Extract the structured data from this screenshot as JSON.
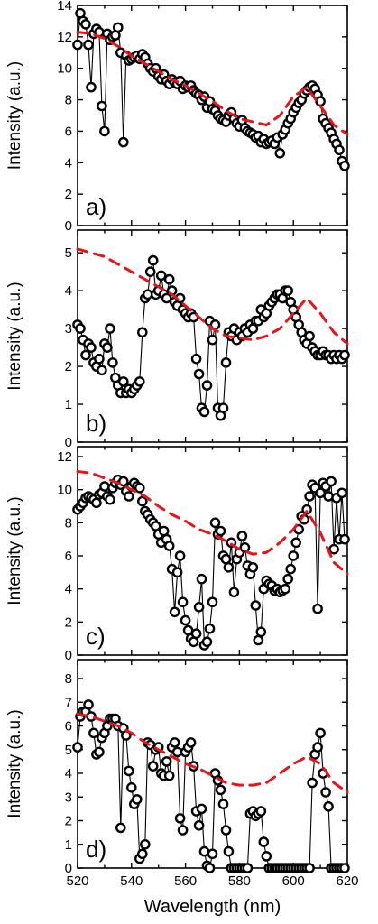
{
  "chart_data": [
    {
      "type": "scatter",
      "panel_label": "a)",
      "ylabel": "Intensity (a.u.)",
      "xlabel": "",
      "xlim": [
        520,
        620
      ],
      "ylim": [
        0,
        14
      ],
      "yticks": [
        "0",
        "2",
        "4",
        "6",
        "8",
        "10",
        "12",
        "14"
      ],
      "xticks": [],
      "series": [
        {
          "style": "markers",
          "x": [
            520,
            521,
            522,
            523,
            524,
            525,
            526,
            527,
            528,
            529,
            530,
            531,
            532,
            533,
            534,
            535,
            536,
            537,
            538,
            539,
            540,
            541,
            542,
            543,
            544,
            545,
            546,
            547,
            548,
            549,
            550,
            551,
            552,
            553,
            554,
            555,
            556,
            557,
            558,
            559,
            560,
            561,
            562,
            563,
            564,
            565,
            566,
            567,
            568,
            569,
            570,
            571,
            572,
            573,
            574,
            575,
            576,
            577,
            578,
            579,
            580,
            581,
            582,
            583,
            584,
            585,
            586,
            587,
            588,
            589,
            590,
            591,
            592,
            593,
            594,
            595,
            596,
            597,
            598,
            599,
            600,
            601,
            602,
            603,
            604,
            605,
            606,
            607,
            608,
            609,
            610,
            611,
            612,
            613,
            614,
            615,
            616,
            617,
            618,
            619
          ],
          "y": [
            11.5,
            13.5,
            13.0,
            12.8,
            11.5,
            8.8,
            12.2,
            12.5,
            12.3,
            7.6,
            6.0,
            12.2,
            11.8,
            12.0,
            12.1,
            12.6,
            11.0,
            5.3,
            10.8,
            10.5,
            10.6,
            10.7,
            10.8,
            10.6,
            10.9,
            10.7,
            10.3,
            10.0,
            9.8,
            10.0,
            9.5,
            9.3,
            9.6,
            9.2,
            9.0,
            9.3,
            9.1,
            9.0,
            9.2,
            8.7,
            8.9,
            8.8,
            8.9,
            8.6,
            8.4,
            8.3,
            8.0,
            8.2,
            7.5,
            7.9,
            7.4,
            7.3,
            7.0,
            6.8,
            6.7,
            6.6,
            7.0,
            7.2,
            6.8,
            6.5,
            6.3,
            6.7,
            6.2,
            6.0,
            5.9,
            5.8,
            5.6,
            5.7,
            5.3,
            5.5,
            5.2,
            5.3,
            5.4,
            5.2,
            5.6,
            4.6,
            5.8,
            6.1,
            6.5,
            6.8,
            7.2,
            7.5,
            7.8,
            8.0,
            8.4,
            8.6,
            8.8,
            8.9,
            8.7,
            8.3,
            7.9,
            6.8,
            6.5,
            6.2,
            5.9,
            5.5,
            5.2,
            4.8,
            4.1,
            3.8
          ]
        },
        {
          "style": "dashed-fit",
          "x": [
            520,
            525,
            530,
            535,
            540,
            545,
            550,
            555,
            560,
            565,
            570,
            575,
            580,
            585,
            590,
            595,
            600,
            605,
            610,
            615,
            620
          ],
          "y": [
            12.3,
            12.2,
            11.9,
            11.4,
            10.8,
            10.3,
            9.8,
            9.3,
            8.9,
            8.4,
            7.9,
            7.3,
            6.8,
            6.6,
            6.4,
            7.0,
            8.2,
            8.8,
            7.6,
            6.4,
            5.8
          ]
        }
      ]
    },
    {
      "type": "scatter",
      "panel_label": "b)",
      "ylabel": "Intensity (a.u.)",
      "xlabel": "",
      "xlim": [
        520,
        620
      ],
      "ylim": [
        0,
        5.6
      ],
      "yticks": [
        "0",
        "1",
        "2",
        "3",
        "4",
        "5"
      ],
      "xticks": [],
      "series": [
        {
          "style": "markers",
          "x": [
            520,
            521,
            522,
            523,
            524,
            525,
            526,
            527,
            528,
            529,
            530,
            531,
            532,
            533,
            534,
            535,
            536,
            537,
            538,
            539,
            540,
            541,
            542,
            543,
            544,
            545,
            546,
            547,
            548,
            549,
            550,
            551,
            552,
            553,
            554,
            555,
            556,
            557,
            558,
            559,
            560,
            561,
            562,
            563,
            564,
            565,
            566,
            567,
            568,
            569,
            570,
            571,
            572,
            573,
            574,
            575,
            576,
            577,
            578,
            579,
            580,
            581,
            582,
            583,
            584,
            585,
            586,
            587,
            588,
            589,
            590,
            591,
            592,
            593,
            594,
            595,
            596,
            597,
            598,
            599,
            600,
            601,
            602,
            603,
            604,
            605,
            606,
            607,
            608,
            609,
            610,
            611,
            612,
            613,
            614,
            615,
            616,
            617,
            618,
            619
          ],
          "y": [
            3.1,
            3.0,
            2.7,
            2.3,
            2.6,
            2.5,
            2.1,
            2.0,
            2.2,
            1.9,
            2.6,
            2.5,
            3.0,
            2.1,
            1.7,
            1.5,
            1.3,
            1.6,
            1.3,
            1.4,
            1.3,
            1.4,
            1.5,
            1.6,
            2.9,
            3.8,
            3.9,
            4.5,
            4.8,
            3.9,
            4.0,
            4.4,
            3.9,
            3.8,
            4.3,
            4.0,
            3.7,
            3.6,
            3.8,
            3.5,
            3.4,
            3.3,
            3.4,
            3.3,
            2.2,
            1.8,
            0.9,
            0.8,
            1.5,
            3.2,
            2.7,
            3.1,
            0.9,
            0.7,
            0.9,
            2.1,
            2.9,
            2.8,
            3.0,
            2.7,
            2.9,
            2.8,
            3.0,
            2.9,
            3.1,
            3.0,
            3.2,
            3.2,
            3.5,
            3.3,
            3.4,
            3.6,
            3.7,
            3.8,
            3.9,
            3.9,
            3.8,
            4.0,
            4.0,
            3.7,
            3.5,
            3.3,
            3.1,
            2.9,
            2.7,
            2.6,
            2.8,
            2.5,
            2.4,
            2.3,
            2.3,
            2.4,
            2.3,
            2.3,
            2.2,
            2.3,
            2.2,
            2.3,
            2.2,
            2.3
          ]
        },
        {
          "style": "dashed-fit",
          "x": [
            520,
            525,
            530,
            535,
            540,
            545,
            550,
            555,
            560,
            565,
            570,
            575,
            580,
            585,
            590,
            595,
            600,
            605,
            610,
            615,
            620
          ],
          "y": [
            5.1,
            5.0,
            4.9,
            4.7,
            4.5,
            4.3,
            4.1,
            3.9,
            3.6,
            3.3,
            3.0,
            2.8,
            2.75,
            2.7,
            2.8,
            3.0,
            3.4,
            3.8,
            3.4,
            2.9,
            2.6
          ]
        }
      ]
    },
    {
      "type": "scatter",
      "panel_label": "c)",
      "ylabel": "Intensity (a.u.)",
      "xlabel": "",
      "xlim": [
        520,
        620
      ],
      "ylim": [
        0,
        12.6
      ],
      "yticks": [
        "0",
        "2",
        "4",
        "6",
        "8",
        "10",
        "12"
      ],
      "xticks": [],
      "series": [
        {
          "style": "markers",
          "x": [
            520,
            521,
            522,
            523,
            524,
            525,
            526,
            527,
            528,
            529,
            530,
            531,
            532,
            533,
            534,
            535,
            536,
            537,
            538,
            539,
            540,
            541,
            542,
            543,
            544,
            545,
            546,
            547,
            548,
            549,
            550,
            551,
            552,
            553,
            554,
            555,
            556,
            557,
            558,
            559,
            560,
            561,
            562,
            563,
            564,
            565,
            566,
            567,
            568,
            569,
            570,
            571,
            572,
            573,
            574,
            575,
            576,
            577,
            578,
            579,
            580,
            581,
            582,
            583,
            584,
            585,
            586,
            587,
            588,
            589,
            590,
            591,
            592,
            593,
            594,
            595,
            596,
            597,
            598,
            599,
            600,
            601,
            602,
            603,
            604,
            605,
            606,
            607,
            608,
            609,
            610,
            611,
            612,
            613,
            614,
            615,
            616,
            617,
            618,
            619
          ],
          "y": [
            8.8,
            9.0,
            9.2,
            9.5,
            9.6,
            9.5,
            9.4,
            9.2,
            9.7,
            9.8,
            10.2,
            9.6,
            9.4,
            10.1,
            10.4,
            10.6,
            10.3,
            10.5,
            9.9,
            9.6,
            10.2,
            10.4,
            10.2,
            10.1,
            9.3,
            8.7,
            8.5,
            8.2,
            8.0,
            7.8,
            7.3,
            6.8,
            7.5,
            7.0,
            6.6,
            5.2,
            2.6,
            5.0,
            6.0,
            3.2,
            2.1,
            1.5,
            1.0,
            0.8,
            1.3,
            2.9,
            4.6,
            0.6,
            0.8,
            1.6,
            3.2,
            8.0,
            7.3,
            7.5,
            6.0,
            5.8,
            5.3,
            6.8,
            3.8,
            5.8,
            6.2,
            7.2,
            6.5,
            5.4,
            4.9,
            5.3,
            3.0,
            0.9,
            1.4,
            4.0,
            4.5,
            4.3,
            4.2,
            3.9,
            4.0,
            3.8,
            3.9,
            4.0,
            4.6,
            5.2,
            6.0,
            6.8,
            7.6,
            8.4,
            8.2,
            8.8,
            9.6,
            10.3,
            10.1,
            2.8,
            9.8,
            10.4,
            10.2,
            9.6,
            10.5,
            6.4,
            9.5,
            7.0,
            9.8,
            7.0
          ]
        },
        {
          "style": "dashed-fit",
          "x": [
            520,
            525,
            530,
            535,
            540,
            545,
            550,
            555,
            560,
            565,
            570,
            575,
            580,
            585,
            590,
            595,
            600,
            605,
            610,
            615,
            620
          ],
          "y": [
            11.1,
            11.0,
            10.7,
            10.4,
            10.0,
            9.6,
            9.0,
            8.5,
            8.1,
            7.6,
            7.3,
            6.9,
            6.4,
            6.1,
            6.2,
            6.8,
            7.6,
            8.7,
            7.4,
            5.6,
            4.9
          ]
        }
      ]
    },
    {
      "type": "scatter",
      "panel_label": "d)",
      "ylabel": "Intensity (a.u.)",
      "xlabel": "Wavelength (nm)",
      "xlim": [
        520,
        620
      ],
      "ylim": [
        0,
        8.8
      ],
      "yticks": [
        "0",
        "1",
        "2",
        "3",
        "4",
        "5",
        "6",
        "7",
        "8"
      ],
      "xticks": [
        "520",
        "540",
        "560",
        "580",
        "600",
        "620"
      ],
      "series": [
        {
          "style": "markers",
          "x": [
            520,
            521,
            522,
            523,
            524,
            525,
            526,
            527,
            528,
            529,
            530,
            531,
            532,
            533,
            534,
            535,
            536,
            537,
            538,
            539,
            540,
            541,
            542,
            543,
            544,
            545,
            546,
            547,
            548,
            549,
            550,
            551,
            552,
            553,
            554,
            555,
            556,
            557,
            558,
            559,
            560,
            561,
            562,
            563,
            564,
            565,
            566,
            567,
            568,
            569,
            570,
            571,
            572,
            573,
            574,
            575,
            576,
            577,
            578,
            579,
            580,
            581,
            582,
            583,
            584,
            585,
            586,
            587,
            588,
            589,
            590,
            591,
            592,
            593,
            594,
            595,
            596,
            597,
            598,
            599,
            600,
            601,
            602,
            603,
            604,
            605,
            606,
            607,
            608,
            609,
            610,
            611,
            612,
            613,
            614,
            615,
            616,
            617,
            618,
            619
          ],
          "y": [
            5.1,
            6.4,
            6.6,
            6.6,
            6.9,
            6.4,
            5.7,
            4.8,
            4.9,
            5.5,
            5.7,
            6.0,
            6.3,
            6.3,
            6.3,
            6.0,
            1.7,
            5.9,
            5.6,
            4.1,
            3.4,
            2.7,
            2.9,
            0.4,
            0.6,
            1.0,
            5.3,
            5.2,
            4.3,
            5.0,
            5.1,
            4.0,
            3.9,
            4.5,
            3.9,
            5.1,
            5.3,
            4.9,
            2.1,
            1.6,
            4.9,
            5.1,
            5.3,
            4.3,
            2.4,
            1.8,
            2.5,
            0.7,
            0.1,
            0.0,
            0.6,
            4.0,
            3.7,
            3.3,
            2.7,
            1.6,
            0.7,
            0.0,
            0.0,
            0.0,
            0.0,
            0.0,
            0.0,
            0.0,
            2.3,
            2.4,
            2.2,
            2.3,
            2.4,
            1.1,
            0.5,
            0.0,
            0.0,
            0.0,
            0.0,
            0.0,
            0.0,
            0.0,
            0.0,
            0.0,
            0.0,
            0.0,
            0.0,
            0.0,
            0.0,
            0.0,
            0.0,
            3.6,
            4.8,
            5.1,
            5.7,
            4.0,
            3.2,
            2.6,
            0.0,
            0.0,
            0.0,
            0.0,
            0.0,
            0.0
          ]
        },
        {
          "style": "dashed-fit",
          "x": [
            520,
            525,
            530,
            535,
            540,
            545,
            550,
            555,
            560,
            565,
            570,
            575,
            580,
            585,
            590,
            595,
            600,
            605,
            610,
            615,
            620
          ],
          "y": [
            6.5,
            6.4,
            6.2,
            6.0,
            5.7,
            5.3,
            5.0,
            4.7,
            4.4,
            4.2,
            3.9,
            3.6,
            3.5,
            3.5,
            3.6,
            4.0,
            4.4,
            4.7,
            4.4,
            3.6,
            3.2
          ]
        }
      ]
    }
  ]
}
